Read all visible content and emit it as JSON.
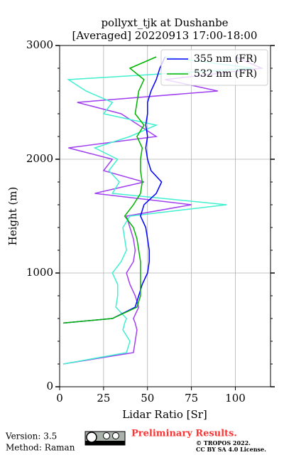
{
  "chart_data": {
    "type": "line",
    "title": "pollyxt_tjk at Dushanbe",
    "subtitle": "[Averaged] 20220913 17:00-18:00",
    "x_label": "Lidar Ratio [Sr]",
    "y_label": "Height (m)",
    "xlim": [
      0,
      120
    ],
    "xticks": [
      0,
      25,
      50,
      75,
      100
    ],
    "ylim": [
      0,
      3000
    ],
    "yticks": [
      0,
      1000,
      2000,
      3000
    ],
    "yticks_minor": [
      200,
      400,
      600,
      800,
      1200,
      1400,
      1600,
      1800,
      2200,
      2400,
      2600,
      2800
    ],
    "grid": true,
    "legend": "upper right",
    "y": [
      200,
      300,
      400,
      500,
      560,
      600,
      700,
      800,
      900,
      1000,
      1100,
      1200,
      1300,
      1400,
      1500,
      1600,
      1700,
      1800,
      1900,
      2000,
      2100,
      2200,
      2300,
      2400,
      2500,
      2600,
      2700,
      2800,
      2900
    ],
    "series": [
      {
        "color": "#a040f0",
        "values": [
          2,
          42,
          43,
          44,
          43,
          42,
          45,
          43,
          40,
          38,
          42,
          43,
          42,
          40,
          38,
          75,
          20,
          48,
          25,
          30,
          5,
          55,
          45,
          35,
          10,
          90,
          60,
          115,
          100
        ]
      },
      {
        "color": "#40f0d0",
        "values": [
          2,
          38,
          40,
          36,
          37,
          38,
          32,
          33,
          33,
          30,
          35,
          38,
          37,
          36,
          40,
          95,
          30,
          34,
          28,
          33,
          20,
          40,
          55,
          25,
          30,
          15,
          5,
          110,
          60
        ]
      },
      {
        "name": "355 nm (FR)",
        "color": "#0000ff",
        "values": [
          null,
          null,
          null,
          null,
          2,
          30,
          43,
          45,
          47,
          50,
          51,
          51,
          50,
          49,
          46,
          48,
          55,
          58,
          52,
          50,
          49,
          50,
          49,
          50,
          50,
          52,
          55,
          57,
          60
        ]
      },
      {
        "name": "532 nm (FR)",
        "color": "#00b400",
        "values": [
          null,
          null,
          null,
          null,
          2,
          30,
          44,
          46,
          46,
          46,
          46,
          45,
          44,
          42,
          37,
          42,
          46,
          47,
          46,
          46,
          47,
          44,
          48,
          43,
          44,
          45,
          48,
          40,
          55
        ]
      }
    ]
  },
  "footer": {
    "version": "Version: 3.5",
    "method": "Method: Raman",
    "status": "Preliminary Results.",
    "copyright": "© TROPOS 2022.",
    "license": "CC BY SA 4.0 License."
  }
}
